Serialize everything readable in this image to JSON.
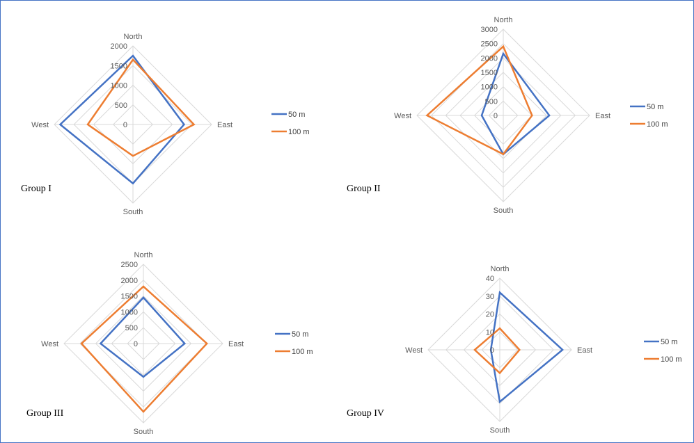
{
  "colors": {
    "50 m": "#4472c4",
    "100 m": "#ed7d31",
    "grid": "#d9d9d9"
  },
  "chart_data": [
    {
      "type": "radar",
      "group_label": "Group I",
      "categories": [
        "North",
        "East",
        "South",
        "West"
      ],
      "ylim": [
        0,
        2000
      ],
      "ticks": [
        "0",
        "500",
        "1000",
        "1500",
        "2000"
      ],
      "grid": true,
      "legend_position": "right",
      "series": [
        {
          "name": "50 m",
          "values": [
            1750,
            1300,
            1500,
            1850
          ]
        },
        {
          "name": "100 m",
          "values": [
            1650,
            1550,
            800,
            1150
          ]
        }
      ]
    },
    {
      "type": "radar",
      "group_label": "Group II",
      "categories": [
        "North",
        "East",
        "South",
        "West"
      ],
      "ylim": [
        0,
        3000
      ],
      "ticks": [
        "0",
        "500",
        "1000",
        "1500",
        "2000",
        "2500",
        "3000"
      ],
      "grid": true,
      "legend_position": "right",
      "series": [
        {
          "name": "50 m",
          "values": [
            2150,
            1600,
            1350,
            750
          ]
        },
        {
          "name": "100 m",
          "values": [
            2400,
            1000,
            1350,
            2650
          ]
        }
      ]
    },
    {
      "type": "radar",
      "group_label": "Group III",
      "categories": [
        "North",
        "East",
        "South",
        "West"
      ],
      "ylim": [
        0,
        2500
      ],
      "ticks": [
        "0",
        "500",
        "1000",
        "1500",
        "2000",
        "2500"
      ],
      "grid": true,
      "legend_position": "right",
      "series": [
        {
          "name": "50 m",
          "values": [
            1450,
            1300,
            1050,
            1350
          ]
        },
        {
          "name": "100 m",
          "values": [
            1800,
            2000,
            2150,
            1950
          ]
        }
      ]
    },
    {
      "type": "radar",
      "group_label": "Group IV",
      "categories": [
        "North",
        "East",
        "South",
        "West"
      ],
      "ylim": [
        0,
        40
      ],
      "ticks": [
        "0",
        "10",
        "20",
        "30",
        "40"
      ],
      "grid": true,
      "legend_position": "right",
      "series": [
        {
          "name": "50 m",
          "values": [
            32,
            35,
            29,
            5
          ]
        },
        {
          "name": "100 m",
          "values": [
            12,
            11,
            13,
            14
          ]
        }
      ]
    }
  ]
}
